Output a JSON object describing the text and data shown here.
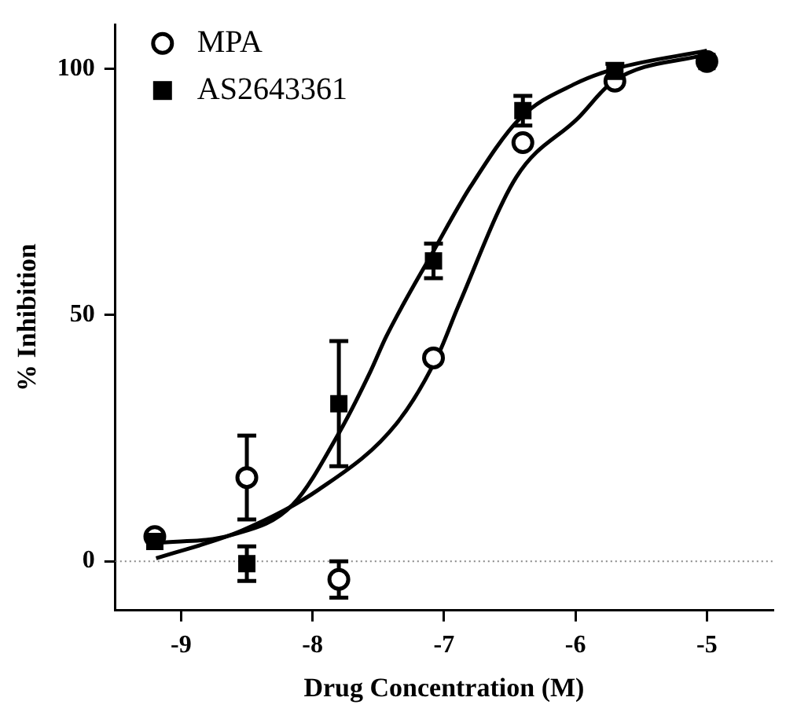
{
  "chart_data": {
    "type": "scatter",
    "xlabel": "Drug Concentration (M)",
    "ylabel": "% Inhibition",
    "xlim": [
      -9.5,
      -4.5
    ],
    "xticks": [
      -9,
      -8,
      -7,
      -6,
      -5
    ],
    "ylim": [
      -10,
      109
    ],
    "yticks": [
      0,
      50,
      100
    ],
    "grid": false,
    "legend": "top left",
    "ref_lines": [
      {
        "axis": "y",
        "value": 0,
        "color": "#888888",
        "line_style": "dotted"
      }
    ],
    "series": [
      {
        "name": "MPA",
        "marker": "circle",
        "color": "#000000",
        "x": [
          -9.2,
          -8.5,
          -7.8,
          -7.08,
          -6.4,
          -5.7,
          -5
        ],
        "values": [
          5,
          17,
          -3.7,
          41.3,
          85,
          97.5,
          101.5
        ],
        "errors": [
          null,
          8.5,
          3.7,
          null,
          null,
          null,
          null
        ]
      },
      {
        "name": "AS2643361",
        "marker": "square",
        "color": "#000000",
        "x": [
          -9.2,
          -8.5,
          -7.8,
          -7.08,
          -6.4,
          -5.7,
          -5
        ],
        "values": [
          4,
          -0.5,
          32,
          61,
          91.5,
          99.5,
          101.5
        ],
        "errors": [
          null,
          3.5,
          12.7,
          3.5,
          3,
          1.5,
          null
        ]
      },
      {
        "type": "line",
        "marker": "none",
        "color": "#000000",
        "x": [
          -9.19,
          -8.62,
          -8.15,
          -7.8,
          -7.56,
          -7.44,
          -7.08,
          -6.8,
          -6.42,
          -6,
          -5.7,
          -5
        ],
        "values": [
          3.7,
          5.3,
          11.5,
          26,
          38.5,
          45.6,
          63,
          76,
          90,
          97,
          100,
          103.7
        ]
      },
      {
        "type": "line",
        "marker": "none",
        "color": "#000000",
        "x": [
          -9.19,
          -8.54,
          -7.95,
          -7.36,
          -7.05,
          -6.89,
          -6.45,
          -5.98,
          -5.71,
          -5
        ],
        "values": [
          0.6,
          6.2,
          14.6,
          28,
          41.6,
          51.9,
          78,
          90,
          97.5,
          103
        ]
      }
    ]
  }
}
